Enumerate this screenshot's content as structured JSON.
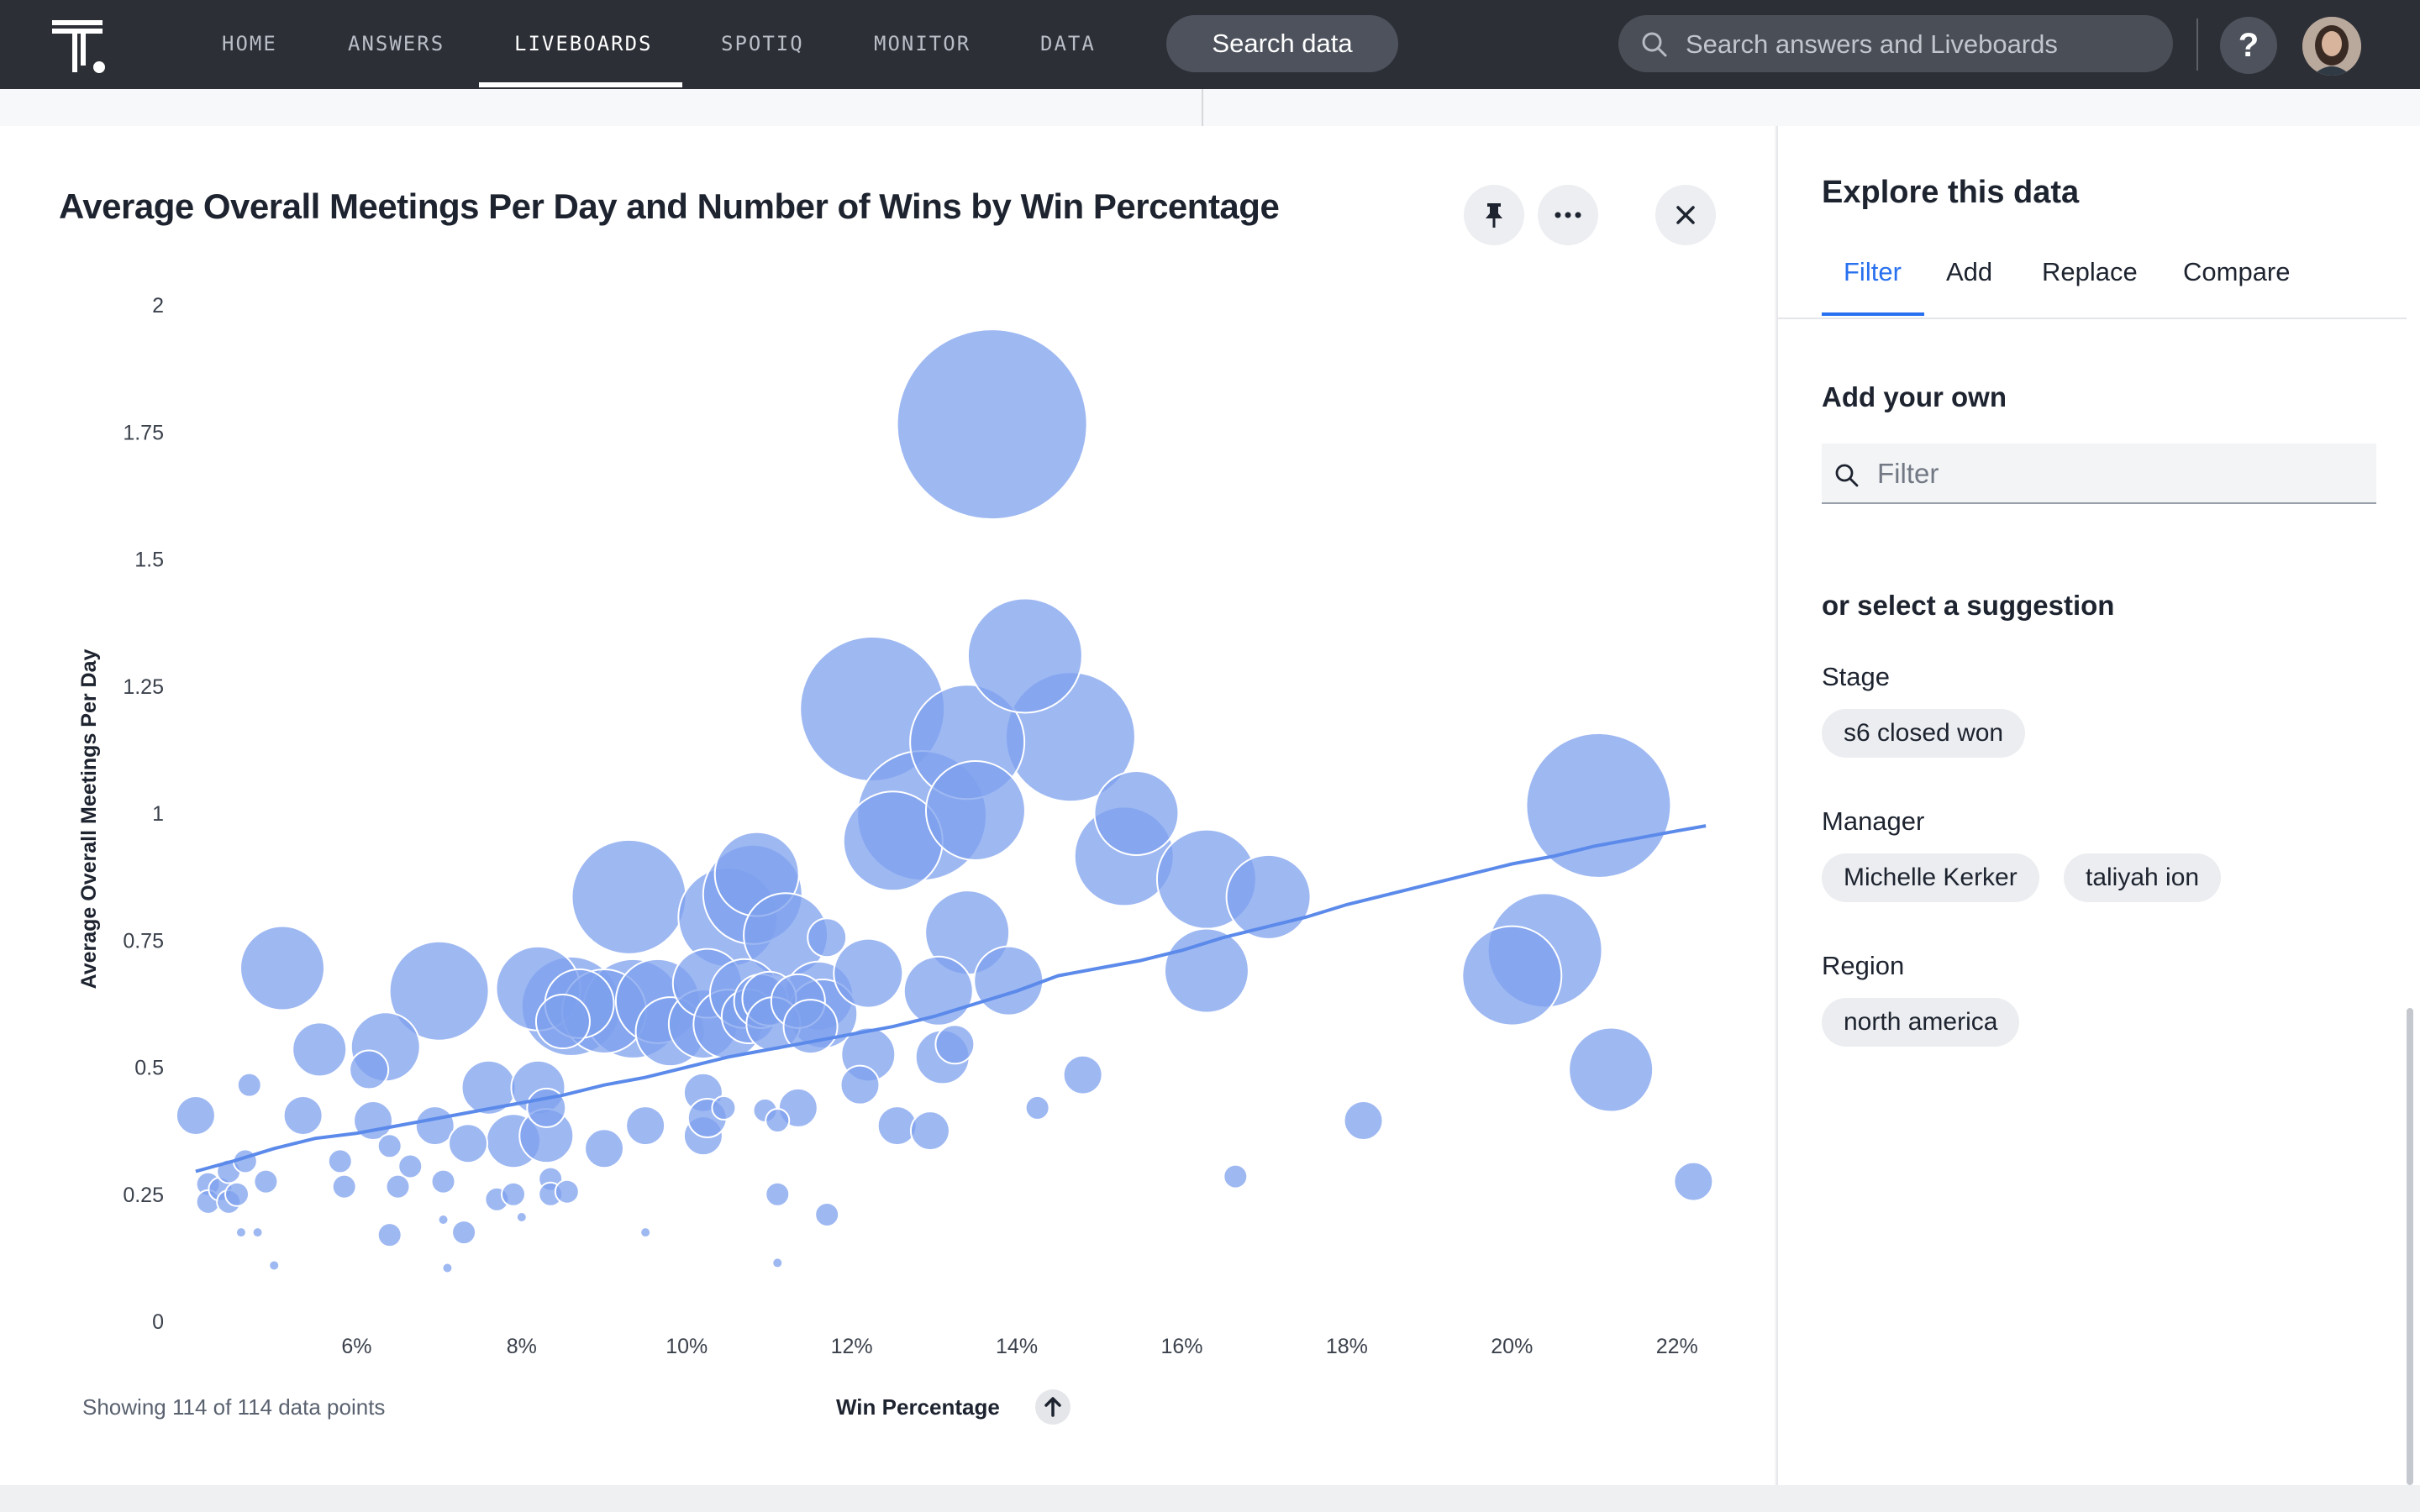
{
  "nav": {
    "items": [
      "HOME",
      "ANSWERS",
      "LIVEBOARDS",
      "SPOTIQ",
      "MONITOR",
      "DATA"
    ],
    "active": "LIVEBOARDS",
    "search_data_label": "Search data",
    "search_placeholder": "Search answers and Liveboards",
    "help_label": "?"
  },
  "chart_panel": {
    "title": "Average Overall Meetings Per Day and Number of Wins by Win Percentage",
    "footer_count": "Showing 114 of 114 data points",
    "icons": [
      "pin-icon",
      "more-icon",
      "close-icon",
      "sort-arrow-up-icon"
    ]
  },
  "side_panel": {
    "title": "Explore this data",
    "tabs": [
      "Filter",
      "Add",
      "Replace",
      "Compare"
    ],
    "active_tab": "Filter",
    "add_own_heading": "Add your own",
    "filter_placeholder": "Filter",
    "suggestion_heading": "or select a suggestion",
    "groups": [
      {
        "label": "Stage",
        "chips": [
          "s6 closed won"
        ]
      },
      {
        "label": "Manager",
        "chips": [
          "Michelle Kerker",
          "taliyah ion"
        ]
      },
      {
        "label": "Region",
        "chips": [
          "north america"
        ]
      }
    ]
  },
  "chart_data": {
    "type": "scatter",
    "title": "Average Overall Meetings Per Day and Number of Wins by Win Percentage",
    "xlabel": "Win Percentage",
    "ylabel": "Average Overall Meetings Per Day",
    "xlim": [
      4.0,
      22.4
    ],
    "ylim": [
      0,
      2
    ],
    "x_ticks": [
      "6%",
      "8%",
      "10%",
      "12%",
      "14%",
      "16%",
      "18%",
      "20%",
      "22%"
    ],
    "x_tick_values": [
      6,
      8,
      10,
      12,
      14,
      16,
      18,
      20,
      22
    ],
    "y_ticks": [
      "0",
      "0.25",
      "0.5",
      "0.75",
      "1",
      "1.25",
      "1.5",
      "1.75",
      "2"
    ],
    "y_tick_values": [
      0,
      0.25,
      0.5,
      0.75,
      1,
      1.25,
      1.5,
      1.75,
      2
    ],
    "bubble_color": "#7da0ee",
    "trend_color": "#5b8aea",
    "grid": false,
    "legend": "none",
    "series": [
      {
        "size_measure": "Number of Wins",
        "points": [
          {
            "x": 4.05,
            "y": 0.405,
            "size": 2
          },
          {
            "x": 4.2,
            "y": 0.27,
            "size": 1
          },
          {
            "x": 4.2,
            "y": 0.235,
            "size": 1
          },
          {
            "x": 4.35,
            "y": 0.26,
            "size": 1
          },
          {
            "x": 4.45,
            "y": 0.295,
            "size": 1
          },
          {
            "x": 4.45,
            "y": 0.235,
            "size": 1
          },
          {
            "x": 4.55,
            "y": 0.25,
            "size": 1
          },
          {
            "x": 4.6,
            "y": 0.175,
            "size": 0
          },
          {
            "x": 4.65,
            "y": 0.315,
            "size": 1
          },
          {
            "x": 4.7,
            "y": 0.465,
            "size": 1
          },
          {
            "x": 4.8,
            "y": 0.175,
            "size": 0
          },
          {
            "x": 4.9,
            "y": 0.275,
            "size": 1
          },
          {
            "x": 5.0,
            "y": 0.11,
            "size": 0
          },
          {
            "x": 5.1,
            "y": 0.695,
            "size": 5
          },
          {
            "x": 5.35,
            "y": 0.405,
            "size": 2
          },
          {
            "x": 5.55,
            "y": 0.535,
            "size": 3
          },
          {
            "x": 5.8,
            "y": 0.315,
            "size": 1
          },
          {
            "x": 5.85,
            "y": 0.265,
            "size": 1
          },
          {
            "x": 6.15,
            "y": 0.495,
            "size": 2
          },
          {
            "x": 6.2,
            "y": 0.395,
            "size": 2
          },
          {
            "x": 6.35,
            "y": 0.54,
            "size": 4
          },
          {
            "x": 6.4,
            "y": 0.17,
            "size": 1
          },
          {
            "x": 6.4,
            "y": 0.345,
            "size": 1
          },
          {
            "x": 6.5,
            "y": 0.265,
            "size": 1
          },
          {
            "x": 6.65,
            "y": 0.305,
            "size": 1
          },
          {
            "x": 6.95,
            "y": 0.385,
            "size": 2
          },
          {
            "x": 7.0,
            "y": 0.65,
            "size": 6
          },
          {
            "x": 7.05,
            "y": 0.2,
            "size": 0
          },
          {
            "x": 7.05,
            "y": 0.275,
            "size": 1
          },
          {
            "x": 7.1,
            "y": 0.105,
            "size": 0
          },
          {
            "x": 7.35,
            "y": 0.35,
            "size": 2
          },
          {
            "x": 7.3,
            "y": 0.175,
            "size": 1
          },
          {
            "x": 7.6,
            "y": 0.46,
            "size": 3
          },
          {
            "x": 7.7,
            "y": 0.24,
            "size": 1
          },
          {
            "x": 7.9,
            "y": 0.355,
            "size": 3
          },
          {
            "x": 7.9,
            "y": 0.25,
            "size": 1
          },
          {
            "x": 8.0,
            "y": 0.205,
            "size": 0
          },
          {
            "x": 8.2,
            "y": 0.655,
            "size": 5
          },
          {
            "x": 8.2,
            "y": 0.46,
            "size": 3
          },
          {
            "x": 8.3,
            "y": 0.42,
            "size": 2
          },
          {
            "x": 8.3,
            "y": 0.365,
            "size": 3
          },
          {
            "x": 8.35,
            "y": 0.28,
            "size": 1
          },
          {
            "x": 8.35,
            "y": 0.25,
            "size": 1
          },
          {
            "x": 8.5,
            "y": 0.59,
            "size": 3
          },
          {
            "x": 8.6,
            "y": 0.62,
            "size": 6
          },
          {
            "x": 8.55,
            "y": 0.255,
            "size": 1
          },
          {
            "x": 8.7,
            "y": 0.625,
            "size": 4
          },
          {
            "x": 9.0,
            "y": 0.61,
            "size": 5
          },
          {
            "x": 9.0,
            "y": 0.34,
            "size": 2
          },
          {
            "x": 9.3,
            "y": 0.835,
            "size": 7
          },
          {
            "x": 9.35,
            "y": 0.615,
            "size": 6
          },
          {
            "x": 9.65,
            "y": 0.63,
            "size": 5
          },
          {
            "x": 9.5,
            "y": 0.175,
            "size": 0
          },
          {
            "x": 9.5,
            "y": 0.385,
            "size": 2
          },
          {
            "x": 9.8,
            "y": 0.57,
            "size": 4
          },
          {
            "x": 10.2,
            "y": 0.585,
            "size": 4
          },
          {
            "x": 10.2,
            "y": 0.45,
            "size": 2
          },
          {
            "x": 10.2,
            "y": 0.365,
            "size": 2
          },
          {
            "x": 10.25,
            "y": 0.4,
            "size": 2
          },
          {
            "x": 10.25,
            "y": 0.665,
            "size": 4
          },
          {
            "x": 10.45,
            "y": 0.42,
            "size": 1
          },
          {
            "x": 10.5,
            "y": 0.795,
            "size": 6
          },
          {
            "x": 10.5,
            "y": 0.585,
            "size": 4
          },
          {
            "x": 10.7,
            "y": 0.645,
            "size": 4
          },
          {
            "x": 10.75,
            "y": 0.6,
            "size": 3
          },
          {
            "x": 10.8,
            "y": 0.84,
            "size": 6
          },
          {
            "x": 10.85,
            "y": 0.88,
            "size": 5
          },
          {
            "x": 10.9,
            "y": 0.63,
            "size": 3
          },
          {
            "x": 10.95,
            "y": 0.415,
            "size": 1
          },
          {
            "x": 11.0,
            "y": 0.635,
            "size": 3
          },
          {
            "x": 11.05,
            "y": 0.585,
            "size": 3
          },
          {
            "x": 11.1,
            "y": 0.25,
            "size": 1
          },
          {
            "x": 11.1,
            "y": 0.115,
            "size": 0
          },
          {
            "x": 11.1,
            "y": 0.395,
            "size": 1
          },
          {
            "x": 11.2,
            "y": 0.76,
            "size": 5
          },
          {
            "x": 11.35,
            "y": 0.63,
            "size": 3
          },
          {
            "x": 11.35,
            "y": 0.42,
            "size": 2
          },
          {
            "x": 11.5,
            "y": 0.58,
            "size": 3
          },
          {
            "x": 11.6,
            "y": 0.64,
            "size": 4
          },
          {
            "x": 11.65,
            "y": 0.605,
            "size": 4
          },
          {
            "x": 11.7,
            "y": 0.755,
            "size": 2
          },
          {
            "x": 11.7,
            "y": 0.21,
            "size": 1
          },
          {
            "x": 12.1,
            "y": 0.465,
            "size": 2
          },
          {
            "x": 12.2,
            "y": 0.525,
            "size": 3
          },
          {
            "x": 12.2,
            "y": 0.685,
            "size": 4
          },
          {
            "x": 12.25,
            "y": 1.205,
            "size": 9
          },
          {
            "x": 12.5,
            "y": 0.945,
            "size": 6
          },
          {
            "x": 12.55,
            "y": 0.385,
            "size": 2
          },
          {
            "x": 12.85,
            "y": 0.995,
            "size": 8
          },
          {
            "x": 12.95,
            "y": 0.375,
            "size": 2
          },
          {
            "x": 13.05,
            "y": 0.65,
            "size": 4
          },
          {
            "x": 13.1,
            "y": 0.52,
            "size": 3
          },
          {
            "x": 13.25,
            "y": 0.545,
            "size": 2
          },
          {
            "x": 13.4,
            "y": 1.14,
            "size": 7
          },
          {
            "x": 13.4,
            "y": 0.765,
            "size": 5
          },
          {
            "x": 13.5,
            "y": 1.005,
            "size": 6
          },
          {
            "x": 13.7,
            "y": 1.765,
            "size": 12
          },
          {
            "x": 13.9,
            "y": 0.67,
            "size": 4
          },
          {
            "x": 14.1,
            "y": 1.31,
            "size": 7
          },
          {
            "x": 14.25,
            "y": 0.42,
            "size": 1
          },
          {
            "x": 14.65,
            "y": 1.15,
            "size": 8
          },
          {
            "x": 14.8,
            "y": 0.485,
            "size": 2
          },
          {
            "x": 15.3,
            "y": 0.915,
            "size": 6
          },
          {
            "x": 15.45,
            "y": 1.0,
            "size": 5
          },
          {
            "x": 16.3,
            "y": 0.87,
            "size": 6
          },
          {
            "x": 16.3,
            "y": 0.69,
            "size": 5
          },
          {
            "x": 16.65,
            "y": 0.285,
            "size": 1
          },
          {
            "x": 17.05,
            "y": 0.835,
            "size": 5
          },
          {
            "x": 18.2,
            "y": 0.395,
            "size": 2
          },
          {
            "x": 20.0,
            "y": 0.68,
            "size": 6
          },
          {
            "x": 20.4,
            "y": 0.73,
            "size": 7
          },
          {
            "x": 21.05,
            "y": 1.015,
            "size": 9
          },
          {
            "x": 21.2,
            "y": 0.495,
            "size": 5
          },
          {
            "x": 22.2,
            "y": 0.275,
            "size": 2
          }
        ]
      },
      {
        "name": "",
        "type": "line",
        "x": [
          4.05,
          4.5,
          5.0,
          5.5,
          6.0,
          6.5,
          7.0,
          7.5,
          8.0,
          8.5,
          9.0,
          9.5,
          10.0,
          10.5,
          11.0,
          11.5,
          12.0,
          12.5,
          13.0,
          13.5,
          14.0,
          14.5,
          15.0,
          15.5,
          16.0,
          16.5,
          17.0,
          17.5,
          18.0,
          18.5,
          19.0,
          19.5,
          20.0,
          20.5,
          21.0,
          21.5,
          22.0,
          22.35
        ],
        "y": [
          0.295,
          0.315,
          0.34,
          0.36,
          0.37,
          0.385,
          0.4,
          0.415,
          0.43,
          0.445,
          0.465,
          0.48,
          0.5,
          0.52,
          0.535,
          0.55,
          0.565,
          0.58,
          0.6,
          0.625,
          0.65,
          0.68,
          0.695,
          0.71,
          0.73,
          0.755,
          0.775,
          0.795,
          0.82,
          0.84,
          0.86,
          0.88,
          0.9,
          0.915,
          0.935,
          0.95,
          0.965,
          0.975
        ]
      }
    ]
  }
}
